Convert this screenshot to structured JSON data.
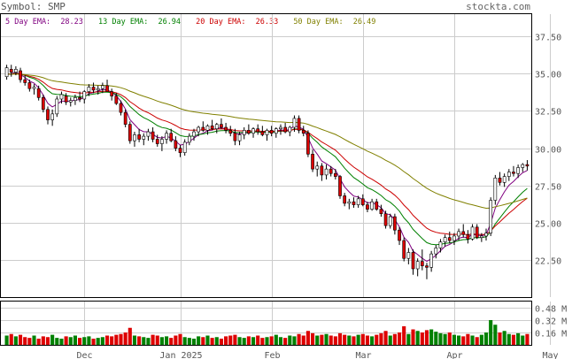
{
  "header": {
    "symbol": "Symbol: SMP",
    "brand": "stockta.com"
  },
  "legend": [
    {
      "label": "5 Day EMA:",
      "value": "28.23",
      "color": "#800080"
    },
    {
      "label": "13 Day EMA:",
      "value": "26.94",
      "color": "#008000"
    },
    {
      "label": "20 Day EMA:",
      "value": "26.33",
      "color": "#cc0000"
    },
    {
      "label": "50 Day EMA:",
      "value": "26.49",
      "color": "#808000"
    }
  ],
  "chart_data": {
    "type": "candlestick",
    "title": "",
    "xlabel": "",
    "ylabel": "",
    "grid": true,
    "price_ylim": [
      20.0,
      39.0
    ],
    "volume_ylim": [
      0,
      0.56
    ],
    "price_ticks": [
      "37.50",
      "35.00",
      "32.50",
      "30.00",
      "27.50",
      "25.00",
      "22.50"
    ],
    "volume_ticks": [
      "0.48 M",
      "0.32 M",
      "0.16 M"
    ],
    "x_ticks": [
      "Dec",
      "Jan 2025",
      "Feb",
      "Mar",
      "Apr",
      "May"
    ],
    "x_tick_positions": [
      17,
      38,
      58,
      78,
      98,
      119
    ],
    "ohlc": [
      [
        34.8,
        35.6,
        34.6,
        35.4
      ],
      [
        35.3,
        35.6,
        34.8,
        35.1
      ],
      [
        35.1,
        35.5,
        34.9,
        35.3
      ],
      [
        35.2,
        35.4,
        34.4,
        34.6
      ],
      [
        34.6,
        34.9,
        34.2,
        34.4
      ],
      [
        34.4,
        34.6,
        33.8,
        34.0
      ],
      [
        34.0,
        34.3,
        33.6,
        34.1
      ],
      [
        34.0,
        34.2,
        33.2,
        33.4
      ],
      [
        33.4,
        33.6,
        32.4,
        32.6
      ],
      [
        32.6,
        32.8,
        31.6,
        31.9
      ],
      [
        31.9,
        32.6,
        31.5,
        32.3
      ],
      [
        32.3,
        33.5,
        32.1,
        33.3
      ],
      [
        33.3,
        33.8,
        33.0,
        33.6
      ],
      [
        33.5,
        33.7,
        32.9,
        33.1
      ],
      [
        33.1,
        33.4,
        32.8,
        33.2
      ],
      [
        33.2,
        33.6,
        32.9,
        33.4
      ],
      [
        33.4,
        33.8,
        33.1,
        33.3
      ],
      [
        33.3,
        33.9,
        33.0,
        33.8
      ],
      [
        33.8,
        34.3,
        33.5,
        34.1
      ],
      [
        34.1,
        34.4,
        33.7,
        33.9
      ],
      [
        33.9,
        34.2,
        33.6,
        34.0
      ],
      [
        34.0,
        34.4,
        33.7,
        34.2
      ],
      [
        34.2,
        34.6,
        33.9,
        33.8
      ],
      [
        33.8,
        34.0,
        33.2,
        33.5
      ],
      [
        33.5,
        33.7,
        32.9,
        33.0
      ],
      [
        33.0,
        33.2,
        32.2,
        32.4
      ],
      [
        32.4,
        32.6,
        31.4,
        31.6
      ],
      [
        31.6,
        31.8,
        30.3,
        30.5
      ],
      [
        30.5,
        31.1,
        30.1,
        30.9
      ],
      [
        30.9,
        31.3,
        30.4,
        30.6
      ],
      [
        30.6,
        31.0,
        30.2,
        30.8
      ],
      [
        30.8,
        31.3,
        30.5,
        31.1
      ],
      [
        31.1,
        31.4,
        30.4,
        30.6
      ],
      [
        30.6,
        30.9,
        30.1,
        30.3
      ],
      [
        30.3,
        30.8,
        29.8,
        30.6
      ],
      [
        30.6,
        31.2,
        30.3,
        31.0
      ],
      [
        31.0,
        31.3,
        30.4,
        30.5
      ],
      [
        30.5,
        30.8,
        29.8,
        30.0
      ],
      [
        30.0,
        30.2,
        29.4,
        29.7
      ],
      [
        29.7,
        30.6,
        29.5,
        30.4
      ],
      [
        30.4,
        31.0,
        30.2,
        30.8
      ],
      [
        30.8,
        31.3,
        30.5,
        31.1
      ],
      [
        31.1,
        31.5,
        30.8,
        31.4
      ],
      [
        31.4,
        31.8,
        31.1,
        31.2
      ],
      [
        31.2,
        31.6,
        30.9,
        31.5
      ],
      [
        31.5,
        31.9,
        31.2,
        31.3
      ],
      [
        31.3,
        31.7,
        31.0,
        31.6
      ],
      [
        31.6,
        32.0,
        31.3,
        31.4
      ],
      [
        31.4,
        31.7,
        31.0,
        31.2
      ],
      [
        31.2,
        31.5,
        30.8,
        31.0
      ],
      [
        31.0,
        31.3,
        30.2,
        30.5
      ],
      [
        30.5,
        31.1,
        30.2,
        30.9
      ],
      [
        30.9,
        31.4,
        30.6,
        31.2
      ],
      [
        31.2,
        31.6,
        30.9,
        31.0
      ],
      [
        31.0,
        31.4,
        30.7,
        31.3
      ],
      [
        31.3,
        31.6,
        30.9,
        31.1
      ],
      [
        31.1,
        31.5,
        30.8,
        30.9
      ],
      [
        30.9,
        31.3,
        30.5,
        31.2
      ],
      [
        31.2,
        31.5,
        30.8,
        31.0
      ],
      [
        31.0,
        31.4,
        30.7,
        31.3
      ],
      [
        31.3,
        31.6,
        30.9,
        31.4
      ],
      [
        31.4,
        31.7,
        31.0,
        31.1
      ],
      [
        31.1,
        31.5,
        30.8,
        31.4
      ],
      [
        31.4,
        32.2,
        31.1,
        32.0
      ],
      [
        32.0,
        32.2,
        31.0,
        31.2
      ],
      [
        31.2,
        31.5,
        30.8,
        31.0
      ],
      [
        31.0,
        31.2,
        29.4,
        29.6
      ],
      [
        29.6,
        29.9,
        28.4,
        28.6
      ],
      [
        28.6,
        29.1,
        28.1,
        28.8
      ],
      [
        28.8,
        29.0,
        27.8,
        28.2
      ],
      [
        28.2,
        28.9,
        27.9,
        28.6
      ],
      [
        28.6,
        28.8,
        28.1,
        28.3
      ],
      [
        28.3,
        28.6,
        27.9,
        28.1
      ],
      [
        28.1,
        28.2,
        26.6,
        26.8
      ],
      [
        26.8,
        27.0,
        26.1,
        26.3
      ],
      [
        26.3,
        26.6,
        25.9,
        26.4
      ],
      [
        26.4,
        26.7,
        26.0,
        26.2
      ],
      [
        26.2,
        26.8,
        26.0,
        26.6
      ],
      [
        26.6,
        26.9,
        26.1,
        26.2
      ],
      [
        26.2,
        26.4,
        25.7,
        25.9
      ],
      [
        25.9,
        26.6,
        25.8,
        26.4
      ],
      [
        26.4,
        26.6,
        25.8,
        25.9
      ],
      [
        25.9,
        26.2,
        25.4,
        25.6
      ],
      [
        25.6,
        25.8,
        24.6,
        24.8
      ],
      [
        24.8,
        25.6,
        24.6,
        25.4
      ],
      [
        25.4,
        25.6,
        24.2,
        24.5
      ],
      [
        24.5,
        24.7,
        23.5,
        23.8
      ],
      [
        23.8,
        24.0,
        22.4,
        22.6
      ],
      [
        22.6,
        23.3,
        22.2,
        23.0
      ],
      [
        23.0,
        23.2,
        21.5,
        21.9
      ],
      [
        21.9,
        22.6,
        21.4,
        22.4
      ],
      [
        22.4,
        23.2,
        21.8,
        22.1
      ],
      [
        22.1,
        22.3,
        21.2,
        22.0
      ],
      [
        22.0,
        23.1,
        21.7,
        22.9
      ],
      [
        22.9,
        23.5,
        22.6,
        23.3
      ],
      [
        23.3,
        23.9,
        23.0,
        23.7
      ],
      [
        23.7,
        24.2,
        23.4,
        24.0
      ],
      [
        24.0,
        24.4,
        23.6,
        23.8
      ],
      [
        23.8,
        24.3,
        23.5,
        24.1
      ],
      [
        24.1,
        24.6,
        23.8,
        24.4
      ],
      [
        24.4,
        24.9,
        24.0,
        24.2
      ],
      [
        24.2,
        24.5,
        23.6,
        23.9
      ],
      [
        23.9,
        24.9,
        23.8,
        24.7
      ],
      [
        24.7,
        24.9,
        23.9,
        24.0
      ],
      [
        24.0,
        24.3,
        23.7,
        24.1
      ],
      [
        24.1,
        24.6,
        23.8,
        24.3
      ],
      [
        24.3,
        26.7,
        24.1,
        26.5
      ],
      [
        26.5,
        28.2,
        26.2,
        28.0
      ],
      [
        28.0,
        28.4,
        27.5,
        27.7
      ],
      [
        27.7,
        28.3,
        27.4,
        28.1
      ],
      [
        28.1,
        28.6,
        27.8,
        28.4
      ],
      [
        28.4,
        28.8,
        28.1,
        28.3
      ],
      [
        28.3,
        28.9,
        28.0,
        28.7
      ],
      [
        28.7,
        29.0,
        28.4,
        28.9
      ],
      [
        28.9,
        29.2,
        28.5,
        28.8
      ]
    ],
    "volume": [
      0.12,
      0.14,
      0.11,
      0.13,
      0.1,
      0.09,
      0.12,
      0.08,
      0.11,
      0.1,
      0.13,
      0.09,
      0.08,
      0.11,
      0.1,
      0.12,
      0.09,
      0.1,
      0.11,
      0.08,
      0.09,
      0.1,
      0.12,
      0.11,
      0.13,
      0.14,
      0.16,
      0.22,
      0.12,
      0.11,
      0.1,
      0.09,
      0.13,
      0.12,
      0.1,
      0.11,
      0.09,
      0.12,
      0.14,
      0.1,
      0.09,
      0.08,
      0.11,
      0.1,
      0.12,
      0.09,
      0.1,
      0.08,
      0.11,
      0.12,
      0.13,
      0.1,
      0.09,
      0.11,
      0.1,
      0.12,
      0.09,
      0.1,
      0.11,
      0.13,
      0.1,
      0.09,
      0.12,
      0.11,
      0.14,
      0.12,
      0.18,
      0.15,
      0.12,
      0.13,
      0.14,
      0.12,
      0.11,
      0.15,
      0.13,
      0.12,
      0.11,
      0.13,
      0.14,
      0.12,
      0.11,
      0.13,
      0.15,
      0.18,
      0.12,
      0.14,
      0.16,
      0.24,
      0.14,
      0.2,
      0.18,
      0.16,
      0.19,
      0.2,
      0.17,
      0.15,
      0.14,
      0.16,
      0.13,
      0.12,
      0.11,
      0.14,
      0.12,
      0.1,
      0.13,
      0.16,
      0.32,
      0.26,
      0.16,
      0.18,
      0.14,
      0.13,
      0.15,
      0.12,
      0.14
    ]
  }
}
